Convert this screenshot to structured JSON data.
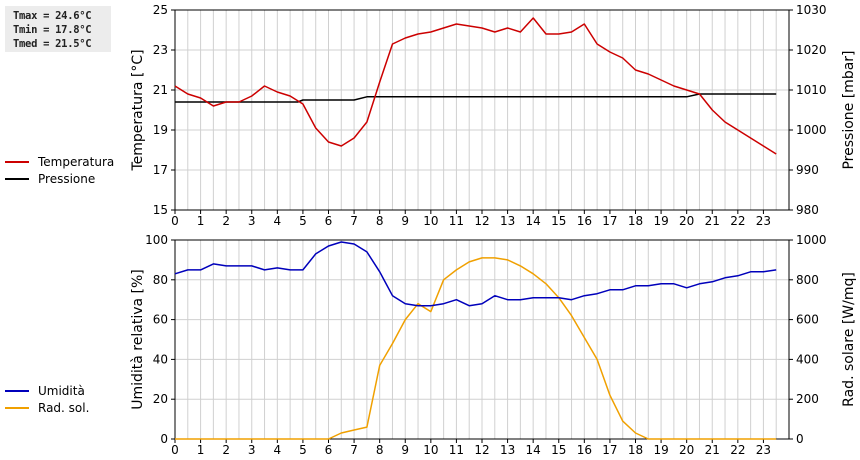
{
  "stats": {
    "tmax": "Tmax = 24.6°C",
    "tmin": "Tmin = 17.8°C",
    "tmed": "Tmed = 21.5°C"
  },
  "colors": {
    "temperature": "#cc0000",
    "pressure": "#000000",
    "humidity": "#0000bb",
    "radiation": "#f0a000",
    "grid": "#d0d0d0"
  },
  "chart_data": [
    {
      "type": "line",
      "xlabel": "",
      "ylabel": "Temperatura [°C]",
      "y2label": "Pressione [mbar]",
      "xlim": [
        0,
        24
      ],
      "ylim": [
        15,
        25
      ],
      "y2lim": [
        980,
        1030
      ],
      "xticks": [
        "0",
        "1",
        "2",
        "3",
        "4",
        "5",
        "6",
        "7",
        "8",
        "9",
        "10",
        "11",
        "12",
        "13",
        "14",
        "15",
        "16",
        "17",
        "18",
        "19",
        "20",
        "21",
        "22",
        "23"
      ],
      "yticks": [
        "15",
        "17",
        "19",
        "21",
        "23",
        "25"
      ],
      "y2ticks": [
        "980",
        "990",
        "1000",
        "1010",
        "1020",
        "1030"
      ],
      "grid": true,
      "legend": "left",
      "series": [
        {
          "name": "Temperatura",
          "axis": "left",
          "x": [
            0,
            0.5,
            1,
            1.5,
            2,
            2.5,
            3,
            3.5,
            4,
            4.5,
            5,
            5.5,
            6,
            6.5,
            7,
            7.5,
            8,
            8.5,
            9,
            9.5,
            10,
            10.5,
            11,
            11.5,
            12,
            12.5,
            13,
            13.5,
            14,
            14.5,
            15,
            15.5,
            16,
            16.5,
            17,
            17.5,
            18,
            18.5,
            19,
            19.5,
            20,
            20.5,
            21,
            21.5,
            22,
            22.5,
            23,
            23.5
          ],
          "values": [
            21.2,
            20.8,
            20.6,
            20.2,
            20.4,
            20.4,
            20.7,
            21.2,
            20.9,
            20.7,
            20.3,
            19.1,
            18.4,
            18.2,
            18.6,
            19.4,
            21.4,
            23.3,
            23.6,
            23.8,
            23.9,
            24.1,
            24.3,
            24.2,
            24.1,
            23.9,
            24.1,
            23.9,
            24.6,
            23.8,
            23.8,
            23.9,
            24.3,
            23.3,
            22.9,
            22.6,
            22.0,
            21.8,
            21.5,
            21.2,
            21.0,
            20.8,
            20.0,
            19.4,
            19.0,
            18.6,
            18.2,
            17.8
          ]
        },
        {
          "name": "Pressione",
          "axis": "right",
          "x": [
            0,
            1,
            2,
            3,
            4,
            4.8,
            5,
            5.5,
            6,
            6.5,
            7,
            7.5,
            8,
            9,
            10,
            11,
            12,
            13,
            14,
            15,
            16,
            17,
            18,
            19,
            20,
            20.5,
            21,
            22,
            23,
            23.5
          ],
          "values": [
            1007,
            1007,
            1007,
            1007,
            1007,
            1007,
            1007.5,
            1007.5,
            1007.5,
            1007.5,
            1007.5,
            1008.3,
            1008.3,
            1008.3,
            1008.3,
            1008.3,
            1008.3,
            1008.3,
            1008.3,
            1008.3,
            1008.3,
            1008.3,
            1008.3,
            1008.3,
            1008.3,
            1009,
            1009,
            1009,
            1009,
            1009
          ]
        }
      ]
    },
    {
      "type": "line",
      "xlabel": "",
      "ylabel": "Umidità relativa [%]",
      "y2label": "Rad. solare [W/mq]",
      "xlim": [
        0,
        24
      ],
      "ylim": [
        0,
        100
      ],
      "y2lim": [
        0,
        1000
      ],
      "xticks": [
        "0",
        "1",
        "2",
        "3",
        "4",
        "5",
        "6",
        "7",
        "8",
        "9",
        "10",
        "11",
        "12",
        "13",
        "14",
        "15",
        "16",
        "17",
        "18",
        "19",
        "20",
        "21",
        "22",
        "23"
      ],
      "yticks": [
        "0",
        "20",
        "40",
        "60",
        "80",
        "100"
      ],
      "y2ticks": [
        "0",
        "200",
        "400",
        "600",
        "800",
        "1000"
      ],
      "grid": true,
      "legend": "left",
      "series": [
        {
          "name": "Umidità",
          "axis": "left",
          "x": [
            0,
            0.5,
            1,
            1.5,
            2,
            2.5,
            3,
            3.5,
            4,
            4.5,
            5,
            5.5,
            6,
            6.5,
            7,
            7.5,
            8,
            8.5,
            9,
            9.5,
            10,
            10.5,
            11,
            11.5,
            12,
            12.5,
            13,
            13.5,
            14,
            14.5,
            15,
            15.5,
            16,
            16.5,
            17,
            17.5,
            18,
            18.5,
            19,
            19.5,
            20,
            20.5,
            21,
            21.5,
            22,
            22.5,
            23,
            23.5
          ],
          "values": [
            83,
            85,
            85,
            88,
            87,
            87,
            87,
            85,
            86,
            85,
            85,
            93,
            97,
            99,
            98,
            94,
            84,
            72,
            68,
            67,
            67,
            68,
            70,
            67,
            68,
            72,
            70,
            70,
            71,
            71,
            71,
            70,
            72,
            73,
            75,
            75,
            77,
            77,
            78,
            78,
            76,
            78,
            79,
            81,
            82,
            84,
            84,
            85
          ]
        },
        {
          "name": "Rad. sol.",
          "axis": "right",
          "x": [
            0,
            0.5,
            1,
            1.5,
            2,
            2.5,
            3,
            3.5,
            4,
            4.5,
            5,
            5.5,
            6,
            6.5,
            7,
            7.5,
            8,
            8.5,
            9,
            9.5,
            10,
            10.5,
            11,
            11.5,
            12,
            12.5,
            13,
            13.5,
            14,
            14.5,
            15,
            15.5,
            16,
            16.5,
            17,
            17.5,
            18,
            18.5,
            19,
            19.5,
            20,
            20.5,
            21,
            21.5,
            22,
            22.5,
            23,
            23.5
          ],
          "values": [
            0,
            0,
            0,
            0,
            0,
            0,
            0,
            0,
            0,
            0,
            0,
            0,
            0,
            30,
            45,
            60,
            370,
            480,
            600,
            680,
            640,
            800,
            850,
            890,
            910,
            910,
            900,
            870,
            830,
            780,
            710,
            620,
            510,
            400,
            220,
            90,
            30,
            0,
            0,
            0,
            0,
            0,
            0,
            0,
            0,
            0,
            0,
            0
          ]
        }
      ]
    }
  ]
}
